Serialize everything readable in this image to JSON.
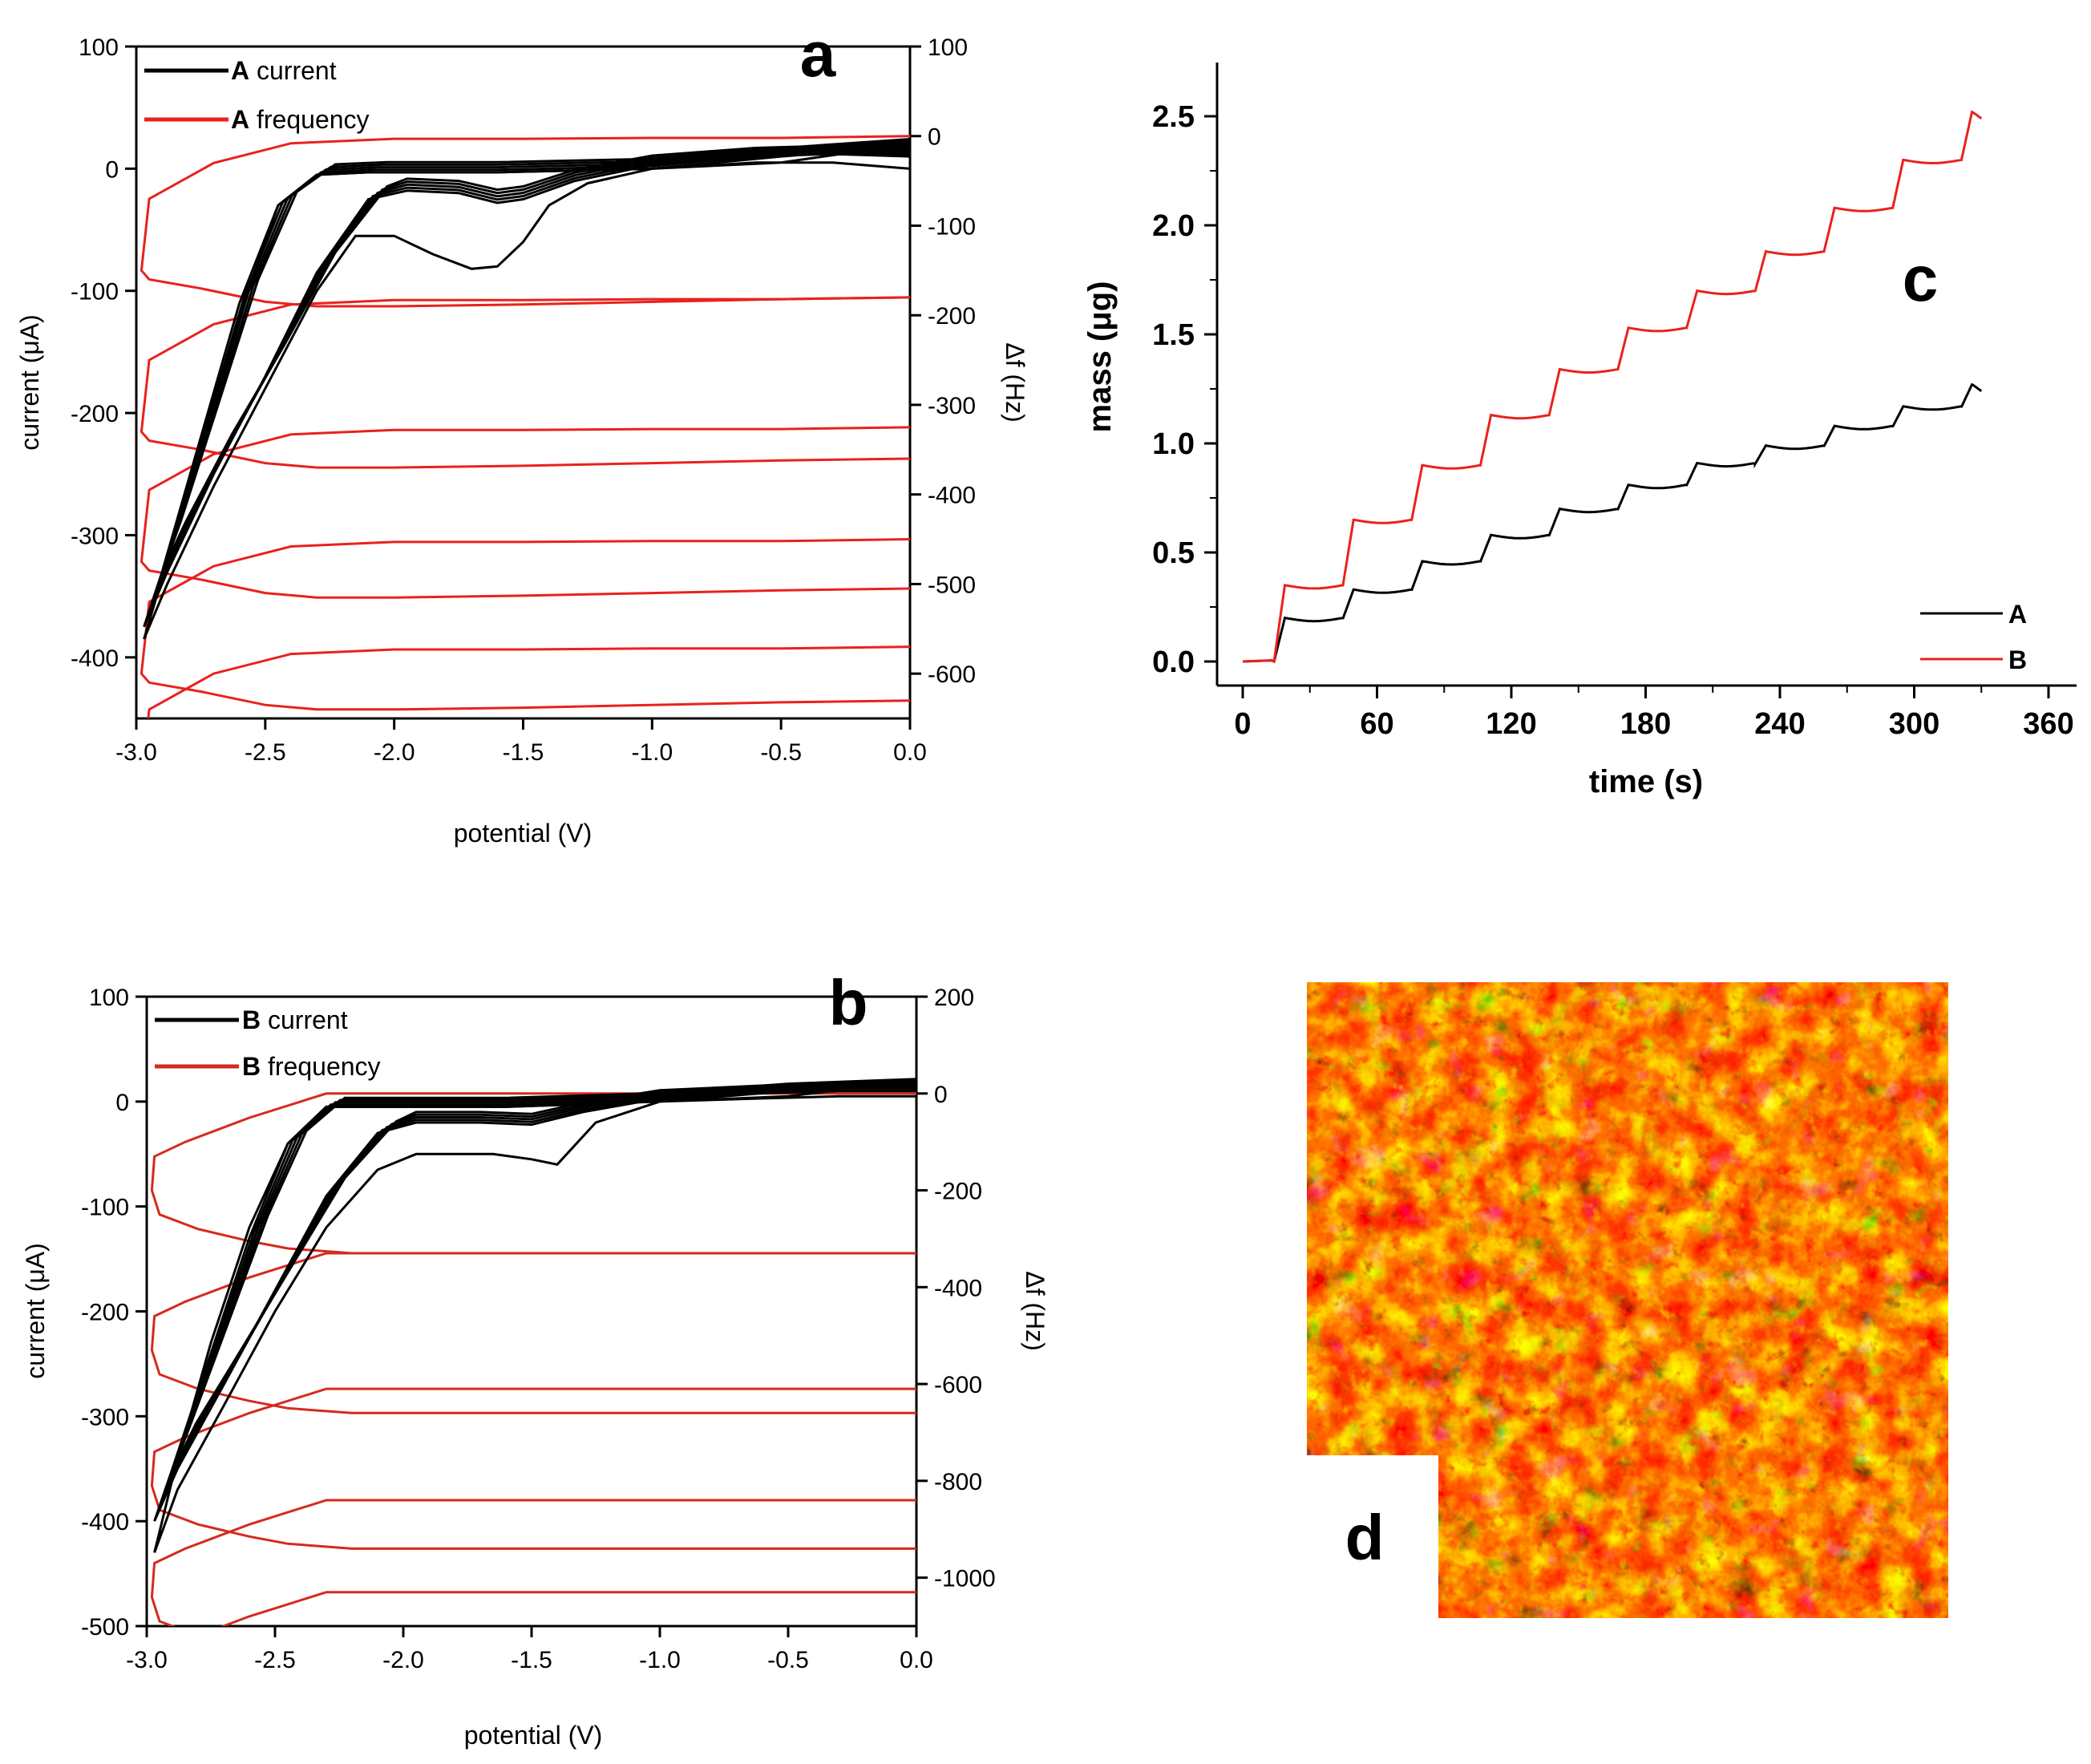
{
  "panels": {
    "a": {
      "letter": "a",
      "chart_data": {
        "type": "line",
        "xlabel": "potential (V)",
        "ylabel": "current (μA)",
        "y2label": "Δf (Hz)",
        "xlim": [
          -3.0,
          0.0
        ],
        "ylim": [
          -450,
          100
        ],
        "y2lim": [
          -650,
          100
        ],
        "xticks": [
          "-3.0",
          "-2.5",
          "-2.0",
          "-1.5",
          "-1.0",
          "-0.5",
          "0.0"
        ],
        "yticks": [
          "100",
          "0",
          "-100",
          "-200",
          "-300",
          "-400"
        ],
        "y2ticks": [
          "100",
          "0",
          "-100",
          "-200",
          "-300",
          "-400",
          "-500",
          "-600"
        ],
        "legend": [
          {
            "prefix": "A",
            "label": "current",
            "color": "#000000"
          },
          {
            "prefix": "A",
            "label": "frequency",
            "color": "#e8221d"
          }
        ],
        "series": [
          {
            "name": "A current (first cycle)",
            "axis": "left",
            "color": "#000000",
            "x": [
              0,
              -0.3,
              -0.6,
              -1.0,
              -1.25,
              -1.4,
              -1.5,
              -1.6,
              -1.7,
              -1.85,
              -2.0,
              -2.15,
              -2.3,
              -2.5,
              -2.7,
              -2.88,
              -2.97,
              -2.9,
              -2.75,
              -2.6,
              -2.45,
              -2.3,
              -2.1,
              -1.6,
              -1.0,
              -0.5,
              0
            ],
            "y": [
              0,
              5,
              5,
              0,
              -12,
              -30,
              -60,
              -80,
              -82,
              -70,
              -55,
              -55,
              -100,
              -180,
              -260,
              -340,
              -385,
              -335,
              -225,
              -120,
              -30,
              -5,
              -3,
              -3,
              0,
              5,
              20
            ]
          },
          {
            "name": "A current (later cycles)",
            "axis": "left",
            "color": "#000000",
            "x": [
              0,
              -0.3,
              -0.6,
              -1.0,
              -1.3,
              -1.5,
              -1.6,
              -1.75,
              -1.95,
              -2.1,
              -2.3,
              -2.5,
              -2.7,
              -2.88,
              -2.97,
              -2.9,
              -2.75,
              -2.6,
              -2.45,
              -2.3,
              -2.1,
              -1.6,
              -1.0,
              -0.5,
              0
            ],
            "y": [
              10,
              12,
              10,
              3,
              -10,
              -25,
              -28,
              -20,
              -18,
              -25,
              -85,
              -170,
              -250,
              -330,
              -375,
              -330,
              -220,
              -110,
              -30,
              -5,
              -3,
              -3,
              0,
              10,
              18
            ]
          },
          {
            "name": "A frequency",
            "axis": "right",
            "color": "#e8221d",
            "x": [
              0,
              -0.5,
              -1.0,
              -1.5,
              -2.0,
              -2.4,
              -2.7,
              -2.95,
              -2.98,
              -2.95,
              -2.75,
              -2.5,
              -2.3,
              -2.0,
              -1.5,
              -1.0,
              -0.5,
              0
            ],
            "y": [
              0,
              -2,
              -2,
              -3,
              -3,
              -8,
              -30,
              -70,
              -150,
              -160,
              -170,
              -185,
              -190,
              -190,
              -188,
              -185,
              -182,
              -180
            ]
          }
        ],
        "frequency_plateaus_hz": [
          -180,
          -325,
          -450,
          -570
        ]
      }
    },
    "b": {
      "letter": "b",
      "chart_data": {
        "type": "line",
        "xlabel": "potential (V)",
        "ylabel": "current (μA)",
        "y2label": "Δf (Hz)",
        "xlim": [
          -3.0,
          0.0
        ],
        "ylim": [
          -500,
          100
        ],
        "y2lim": [
          -1100,
          200
        ],
        "xticks": [
          "-3.0",
          "-2.5",
          "-2.0",
          "-1.5",
          "-1.0",
          "-0.5",
          "0.0"
        ],
        "yticks": [
          "100",
          "0",
          "-100",
          "-200",
          "-300",
          "-400",
          "-500"
        ],
        "y2ticks": [
          "200",
          "0",
          "-200",
          "-400",
          "-600",
          "-800",
          "-1000"
        ],
        "legend": [
          {
            "prefix": "B",
            "label": "current",
            "color": "#000000"
          },
          {
            "prefix": "B",
            "label": "frequency",
            "color": "#d42a1e"
          }
        ],
        "series": [
          {
            "name": "B current (first cycle)",
            "axis": "left",
            "color": "#000000",
            "x": [
              0,
              -0.3,
              -0.6,
              -1.0,
              -1.25,
              -1.4,
              -1.5,
              -1.65,
              -1.8,
              -1.95,
              -2.1,
              -2.3,
              -2.5,
              -2.7,
              -2.88,
              -2.97,
              -2.9,
              -2.75,
              -2.6,
              -2.45,
              -2.3,
              -2.1,
              -1.6,
              -1.0,
              -0.5,
              0
            ],
            "y": [
              5,
              5,
              3,
              0,
              -20,
              -60,
              -55,
              -50,
              -50,
              -50,
              -65,
              -120,
              -200,
              -290,
              -370,
              -430,
              -360,
              -230,
              -120,
              -40,
              -5,
              -5,
              -5,
              0,
              5,
              20
            ]
          },
          {
            "name": "B current (later cycles)",
            "axis": "left",
            "color": "#000000",
            "x": [
              0,
              -0.3,
              -0.6,
              -1.0,
              -1.3,
              -1.5,
              -1.7,
              -1.95,
              -2.1,
              -2.3,
              -2.5,
              -2.7,
              -2.88,
              -2.97,
              -2.9,
              -2.75,
              -2.6,
              -2.45,
              -2.3,
              -2.1,
              -1.6,
              -1.0,
              -0.5,
              0
            ],
            "y": [
              10,
              10,
              8,
              3,
              -10,
              -22,
              -20,
              -20,
              -30,
              -90,
              -180,
              -270,
              -350,
              -400,
              -350,
              -240,
              -130,
              -40,
              -5,
              -5,
              -5,
              0,
              10,
              15
            ]
          },
          {
            "name": "B frequency",
            "axis": "right",
            "color": "#d42a1e",
            "x": [
              0,
              -0.5,
              -1.0,
              -1.5,
              -2.0,
              -2.3,
              -2.6,
              -2.85,
              -2.97,
              -2.98,
              -2.95,
              -2.8,
              -2.6,
              -2.45,
              -2.2,
              -2.0,
              -1.5,
              -1.0,
              -0.5,
              0
            ],
            "y": [
              0,
              0,
              0,
              0,
              0,
              0,
              -50,
              -100,
              -130,
              -200,
              -250,
              -280,
              -305,
              -320,
              -330,
              -330,
              -330,
              -330,
              -330,
              -330
            ]
          }
        ],
        "frequency_plateaus_hz": [
          -330,
          -610,
          -840,
          -1030
        ]
      }
    },
    "c": {
      "letter": "c",
      "chart_data": {
        "type": "line",
        "xlabel": "time (s)",
        "ylabel": "mass (μg)",
        "xlim": [
          -10,
          370
        ],
        "ylim": [
          -0.1,
          2.75
        ],
        "xticks": [
          "0",
          "60",
          "120",
          "180",
          "240",
          "300",
          "360"
        ],
        "yticks": [
          "0.0",
          "0.5",
          "1.0",
          "1.5",
          "2.0",
          "2.5"
        ],
        "legend": [
          {
            "label": "A",
            "color": "#000000"
          },
          {
            "label": "B",
            "color": "#e8221d"
          }
        ],
        "series": [
          {
            "name": "A",
            "color": "#000000",
            "start_time": 14,
            "step_period_s": 30.7,
            "steps": [
              0.2,
              0.33,
              0.46,
              0.58,
              0.7,
              0.81,
              0.91,
              0.99,
              1.08,
              1.17,
              1.27
            ]
          },
          {
            "name": "B",
            "color": "#e8221d",
            "start_time": 14,
            "step_period_s": 30.7,
            "steps": [
              0.35,
              0.65,
              0.9,
              1.13,
              1.34,
              1.53,
              1.7,
              1.88,
              2.08,
              2.3,
              2.52
            ]
          }
        ]
      }
    },
    "d": {
      "letter": "d",
      "description": "heatmap image"
    }
  }
}
